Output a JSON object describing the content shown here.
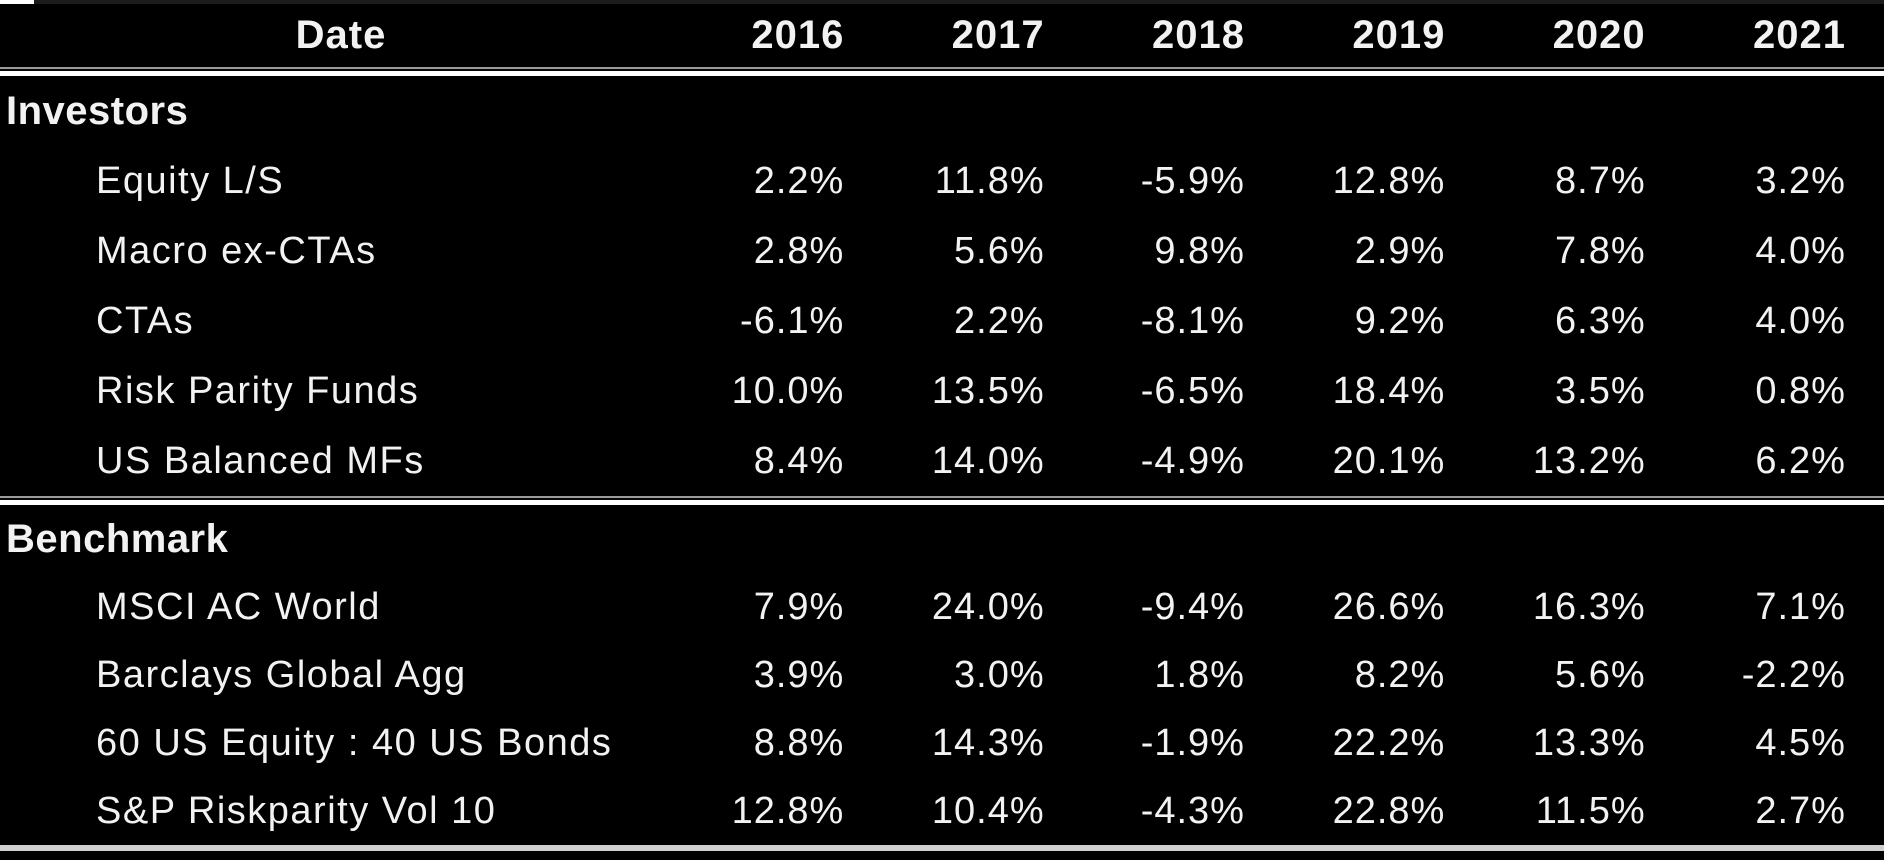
{
  "chart_data": {
    "type": "table",
    "header": {
      "date_label": "Date",
      "years": [
        "2016",
        "2017",
        "2018",
        "2019",
        "2020",
        "2021"
      ]
    },
    "sections": [
      {
        "label": "Investors",
        "rows": [
          {
            "label": "Equity L/S",
            "values": [
              "2.2%",
              "11.8%",
              "-5.9%",
              "12.8%",
              "8.7%",
              "3.2%"
            ]
          },
          {
            "label": "Macro ex-CTAs",
            "values": [
              "2.8%",
              "5.6%",
              "9.8%",
              "2.9%",
              "7.8%",
              "4.0%"
            ]
          },
          {
            "label": "CTAs",
            "values": [
              "-6.1%",
              "2.2%",
              "-8.1%",
              "9.2%",
              "6.3%",
              "4.0%"
            ]
          },
          {
            "label": "Risk Parity Funds",
            "values": [
              "10.0%",
              "13.5%",
              "-6.5%",
              "18.4%",
              "3.5%",
              "0.8%"
            ]
          },
          {
            "label": "US Balanced MFs",
            "values": [
              "8.4%",
              "14.0%",
              "-4.9%",
              "20.1%",
              "13.2%",
              "6.2%"
            ]
          }
        ]
      },
      {
        "label": "Benchmark",
        "rows": [
          {
            "label": "MSCI AC World",
            "values": [
              "7.9%",
              "24.0%",
              "-9.4%",
              "26.6%",
              "16.3%",
              "7.1%"
            ]
          },
          {
            "label": "Barclays Global Agg",
            "values": [
              "3.9%",
              "3.0%",
              "1.8%",
              "8.2%",
              "5.6%",
              "-2.2%"
            ]
          },
          {
            "label": "60 US Equity : 40 US Bonds",
            "values": [
              "8.8%",
              "14.3%",
              "-1.9%",
              "22.2%",
              "13.3%",
              "4.5%"
            ]
          },
          {
            "label": "S&P Riskparity Vol 10",
            "values": [
              "12.8%",
              "10.4%",
              "-4.3%",
              "22.8%",
              "11.5%",
              "2.7%"
            ]
          }
        ]
      }
    ],
    "layout": {
      "grid": "off",
      "legend": "none",
      "value_alignment": "right"
    }
  },
  "colors": {
    "background": "#000000",
    "text": "#f2f2f2",
    "separator_bright": "#ffffff",
    "separator_dim": "#9a9a9a",
    "bottom_rule": "#cfcfcf"
  }
}
